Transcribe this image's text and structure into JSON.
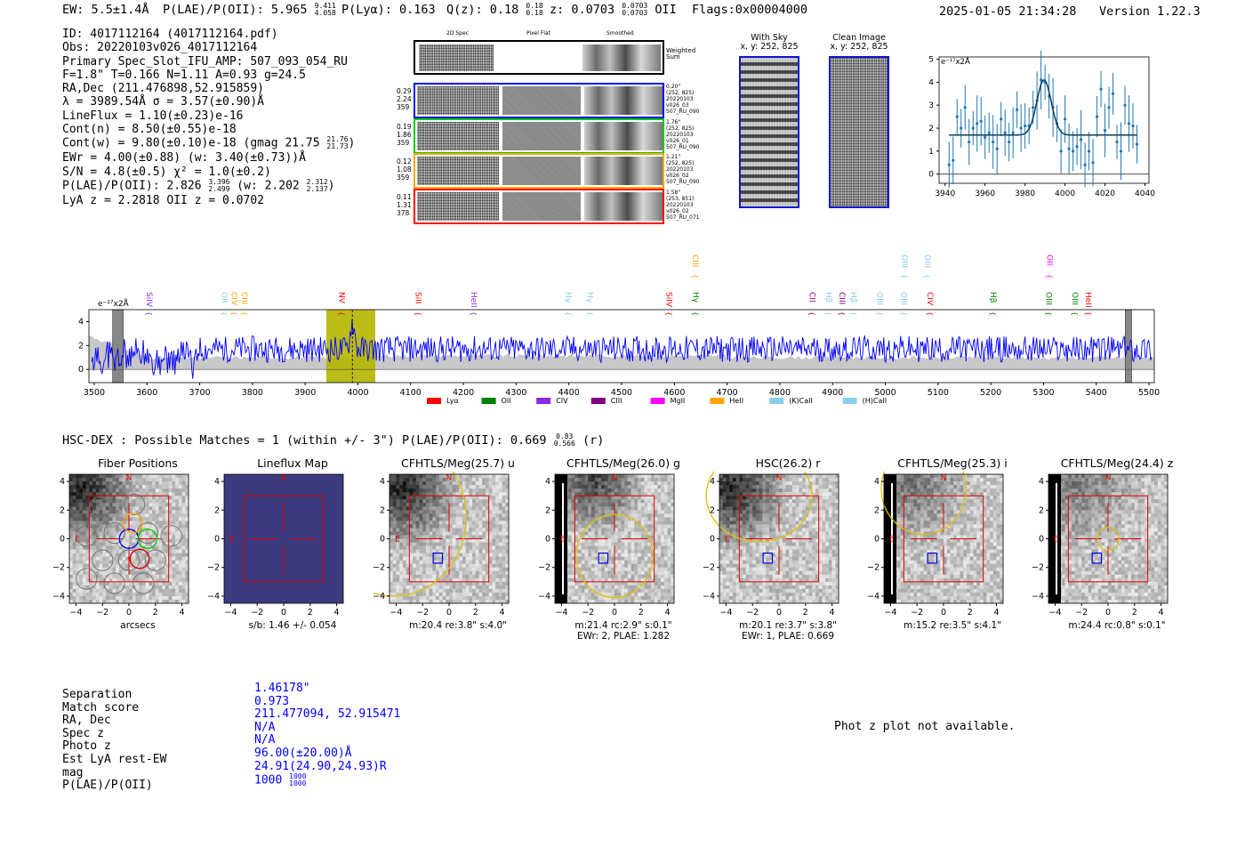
{
  "header": {
    "ew": "EW: 5.5±1.4Å",
    "plae_label": "P(LAE)/P(OII): 5.965",
    "plae_hi": "9.411",
    "plae_lo": "4.058",
    "plya": "P(Lyα): 0.163",
    "qz_label": "Q(z): 0.18",
    "qz_hi": "0.18",
    "qz_lo": "0.18",
    "z_label": "z: 0.0703",
    "z_hi": "0.0703",
    "z_lo": "0.0703",
    "z_line": "OII",
    "flags": "Flags:0x00004000",
    "datetime": "2025-01-05 21:34:28",
    "version": "Version 1.22.3"
  },
  "info": {
    "id": "ID: 4017112164 (4017112164.pdf)",
    "obs": "Obs: 20220103v026_4017112164",
    "slot": "Primary Spec_Slot_IFU_AMP: 507_093_054_RU",
    "fparams": "F=1.8\"  T=0.166  N=1.11  A=0.93  g=24.5",
    "radec": "RA,Dec (211.476898,52.915859)",
    "lambda": "λ = 3989.54Å  σ = 3.57(±0.90)Å",
    "lineflux": "LineFlux = 1.10(±0.23)e-16",
    "cont_n": "Cont(n) = 8.50(±0.55)e-18",
    "cont_w": "Cont(w) = 9.80(±0.10)e-18 (gmag 21.75",
    "cont_w_hi": "21.76",
    "cont_w_lo": "21.73",
    "ewr": "EWr = 4.00(±0.88) (w: 3.40(±0.73))Å",
    "sn": "S/N = 4.8(±0.5)  χ² = 1.0(±0.2)",
    "plae": "P(LAE)/P(OII): 2.826",
    "plae_hi": "3.396",
    "plae_lo": "2.499",
    "plae_w": "(w: 2.202",
    "plae_w_hi": "2.312",
    "plae_w_lo": "2.137",
    "lya_z": "LyA z = 2.2818  OII z = 0.0702"
  },
  "spec2d": {
    "col_labels": [
      "2D Spec",
      "Pixel Flat",
      "Smoothed"
    ],
    "weighted_label": "Weighted Sum",
    "rows": [
      {
        "v1": "0.29",
        "v2": "2.24",
        "v3": "359",
        "d1": "0.20\"",
        "d2": "(252, 825)",
        "d3": "20220103",
        "d4": "v026_03",
        "d5": "507_RU_090",
        "color": "#0000ff"
      },
      {
        "v1": "0.19",
        "v2": "1.86",
        "v3": "359",
        "d1": "1.76\"",
        "d2": "(252, 825)",
        "d3": "20220103",
        "d4": "v026_01",
        "d5": "507_RU_090",
        "color": "#00cc00"
      },
      {
        "v1": "0.12",
        "v2": "1.08",
        "v3": "359",
        "d1": "1.21\"",
        "d2": "(252, 825)",
        "d3": "20220103",
        "d4": "v026_02",
        "d5": "507_RU_090",
        "color": "#ffa500"
      },
      {
        "v1": "0.11",
        "v2": "1.31",
        "v3": "378",
        "d1": "1.58\"",
        "d2": "(253, 851)",
        "d3": "20220103",
        "d4": "v026_02",
        "d5": "507_RU_071",
        "color": "#ff0000"
      }
    ]
  },
  "sky_panels": [
    {
      "title": "With Sky",
      "coords": "x, y: 252, 825"
    },
    {
      "title": "Clean Image",
      "coords": "x, y: 252, 825"
    }
  ],
  "zoom_chart": {
    "unit": "e⁻¹⁷x2Å"
  },
  "spectrum": {
    "unit": "e⁻¹⁷x2Å",
    "legend": [
      {
        "label": "Lyα",
        "color": "#ff0000"
      },
      {
        "label": "OII",
        "color": "#008000"
      },
      {
        "label": "CIV",
        "color": "#8a2be2"
      },
      {
        "label": "CIII",
        "color": "#800080"
      },
      {
        "label": "MgII",
        "color": "#ff00ff"
      },
      {
        "label": "HeII",
        "color": "#ffa500"
      },
      {
        "label": "(K)CaII",
        "color": "#87ceeb"
      },
      {
        "label": "(H)CaII",
        "color": "#87ceeb"
      }
    ],
    "lines": [
      {
        "label": "SiIV",
        "wave": 3605,
        "color": "#8a2be2",
        "row": 0
      },
      {
        "label": "OII",
        "wave": 3747,
        "color": "#87ceeb",
        "row": 0
      },
      {
        "label": "CIV",
        "wave": 3766,
        "color": "#ffa500",
        "row": 0
      },
      {
        "label": "CIII",
        "wave": 3785,
        "color": "#ffa500",
        "row": 0
      },
      {
        "label": "NV",
        "wave": 3970,
        "color": "#ff0000",
        "row": 0
      },
      {
        "label": "SiII",
        "wave": 4115,
        "color": "#ff0000",
        "row": 0
      },
      {
        "label": "HeII",
        "wave": 4220,
        "color": "#8a2be2",
        "row": 0
      },
      {
        "label": "Hγ",
        "wave": 4400,
        "color": "#87ceeb",
        "row": 0
      },
      {
        "label": "Hγ",
        "wave": 4440,
        "color": "#87ceeb",
        "row": 0
      },
      {
        "label": "SiIV",
        "wave": 4590,
        "color": "#ff0000",
        "row": 0
      },
      {
        "label": "CIII",
        "wave": 4640,
        "color": "#ffa500",
        "row": 1
      },
      {
        "label": "Hγ",
        "wave": 4641,
        "color": "#008000",
        "row": 0
      },
      {
        "label": "CII",
        "wave": 4862,
        "color": "#800080",
        "row": 0
      },
      {
        "label": "Hβ",
        "wave": 4893,
        "color": "#87ceeb",
        "row": 0
      },
      {
        "label": "CIII",
        "wave": 4918,
        "color": "#800080",
        "row": 0
      },
      {
        "label": "Hβ",
        "wave": 4940,
        "color": "#87ceeb",
        "row": 0
      },
      {
        "label": "OIII",
        "wave": 4990,
        "color": "#87ceeb",
        "row": 0
      },
      {
        "label": "OIII",
        "wave": 5035,
        "color": "#87ceeb",
        "row": 0
      },
      {
        "label": "OIII",
        "wave": 5037,
        "color": "#87ceeb",
        "row": 1
      },
      {
        "label": "CIV",
        "wave": 5085,
        "color": "#ff0000",
        "row": 0
      },
      {
        "label": "OIII",
        "wave": 5080,
        "color": "#87ceeb",
        "row": 1
      },
      {
        "label": "Hβ",
        "wave": 5205,
        "color": "#008000",
        "row": 0
      },
      {
        "label": "OIII",
        "wave": 5310,
        "color": "#008000",
        "row": 0
      },
      {
        "label": "OII",
        "wave": 5312,
        "color": "#ff00ff",
        "row": 1
      },
      {
        "label": "OIII",
        "wave": 5360,
        "color": "#008000",
        "row": 0
      },
      {
        "label": "HeII",
        "wave": 5385,
        "color": "#ff0000",
        "row": 0
      }
    ]
  },
  "hsc": {
    "title": "HSC-DEX : Possible Matches = 1 (within +/- 3\")  P(LAE)/P(OII): 0.669",
    "p_hi": "0.83",
    "p_lo": "0.566",
    "band": "(r)"
  },
  "cutouts": [
    {
      "title": "Fiber Positions",
      "cap1": "arcsecs",
      "cap2": ""
    },
    {
      "title": "Lineflux Map",
      "cap1": "s/b: 1.46 +/- 0.054",
      "cap2": ""
    },
    {
      "title": "CFHTLS/Meg(25.7) u",
      "cap1": "m:20.4  re:3.8\"  s:4.0\"",
      "cap2": ""
    },
    {
      "title": "CFHTLS/Meg(26.0) g",
      "cap1": "m:21.4  rc:2.9\"  s:0.1\"",
      "cap2": "EWr: 2, PLAE: 1.282"
    },
    {
      "title": "HSC(26.2) r",
      "cap1": "m:20.1  re:3.7\"  s:3.8\"",
      "cap2": "EWr: 1, PLAE: 0.669"
    },
    {
      "title": "CFHTLS/Meg(25.3) i",
      "cap1": "m:15.2  re:3.5\"  s:4.1\"",
      "cap2": ""
    },
    {
      "title": "CFHTLS/Meg(24.4) z",
      "cap1": "m:24.4  rc:0.8\"  s:0.1\"",
      "cap2": ""
    }
  ],
  "cutout_markers": {
    "north": "N",
    "east": "E"
  },
  "match": {
    "labels": [
      "Separation",
      "Match score",
      "RA, Dec",
      "Spec z",
      "Photo z",
      "Est LyA rest-EW",
      "mag",
      "P(LAE)/P(OII)"
    ],
    "values": [
      "1.46178\"",
      "0.973",
      "211.477094, 52.915471",
      "N/A",
      "N/A",
      "96.00(±20.00)Å",
      "24.91(24.90,24.93)R",
      "1000"
    ],
    "plae_hi": "1000",
    "plae_lo": "1000"
  },
  "photz_note": "Phot z plot not available.",
  "chart_data": [
    {
      "type": "scatter",
      "title": "",
      "xlabel": "",
      "ylabel": "e⁻¹⁷x2Å",
      "xlim": [
        3937,
        4042
      ],
      "ylim": [
        -0.4,
        5.1
      ],
      "xticks": [
        3940,
        3960,
        3980,
        4000,
        4020,
        4040
      ],
      "yticks": [
        0,
        1,
        2,
        3,
        4,
        5
      ],
      "x": [
        3942,
        3944,
        3946,
        3948,
        3950,
        3952,
        3954,
        3956,
        3958,
        3960,
        3962,
        3964,
        3966,
        3968,
        3970,
        3972,
        3974,
        3976,
        3978,
        3980,
        3982,
        3984,
        3986,
        3988,
        3990,
        3992,
        3994,
        3996,
        3998,
        4000,
        4002,
        4004,
        4006,
        4008,
        4010,
        4012,
        4014,
        4016,
        4018,
        4020,
        4022,
        4024,
        4026,
        4028,
        4030,
        4032,
        4034,
        4036
      ],
      "y": [
        0.4,
        0.6,
        2.5,
        2.0,
        2.9,
        1.4,
        2.0,
        2.2,
        2.3,
        1.6,
        1.8,
        1.4,
        1.1,
        2.4,
        1.8,
        1.4,
        1.8,
        2.8,
        2.0,
        2.1,
        2.1,
        2.9,
        3.2,
        4.1,
        4.0,
        3.4,
        2.9,
        2.2,
        1.0,
        2.4,
        1.1,
        1.0,
        1.2,
        1.5,
        0.4,
        1.0,
        0.5,
        2.5,
        3.7,
        1.9,
        2.9,
        3.5,
        1.4,
        1.0,
        3.0,
        2.2,
        2.1,
        1.3
      ],
      "fit": {
        "continuum": 1.7,
        "peak": 4.1,
        "center": 3989.5,
        "sigma": 3.6
      }
    },
    {
      "type": "line",
      "title": "",
      "ylabel": "e⁻¹⁷x2Å",
      "xlim": [
        3490,
        5510
      ],
      "ylim": [
        -1.1,
        5.0
      ],
      "xticks": [
        3500,
        3600,
        3700,
        3800,
        3900,
        4000,
        4100,
        4200,
        4300,
        4400,
        4500,
        4600,
        4700,
        4800,
        4900,
        5000,
        5100,
        5200,
        5300,
        5400,
        5500
      ],
      "yticks": [
        0,
        2,
        4
      ],
      "highlight_range": [
        3940,
        4033
      ],
      "line_center": 3989.5,
      "masked_ranges": [
        [
          3535,
          3555
        ],
        [
          5455,
          5467
        ]
      ],
      "series": [
        {
          "name": "flux",
          "color": "#0000ff",
          "baseline": 1.7,
          "scatter": 1.1,
          "peak": 4.0,
          "peak_center": 3989.5
        },
        {
          "name": "error",
          "color": "#c0c0c0",
          "baseline": 1.0
        }
      ]
    }
  ]
}
